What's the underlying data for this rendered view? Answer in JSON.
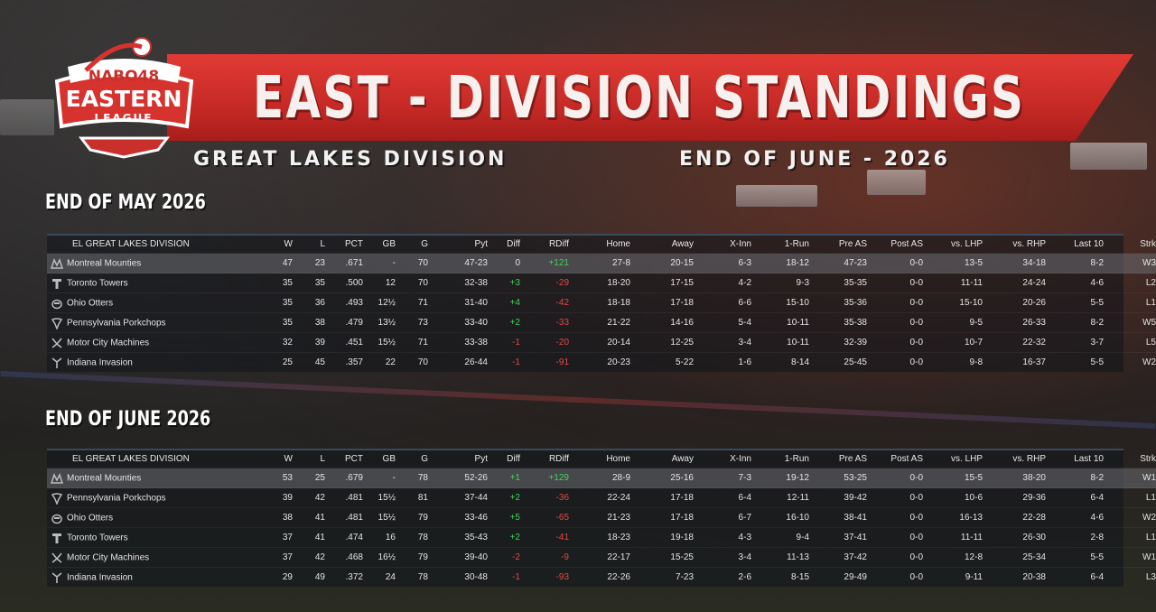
{
  "header": {
    "title": "EAST - DIVISION STANDINGS",
    "subtitle_left": "GREAT LAKES DIVISION",
    "subtitle_right": "END OF JUNE - 2026",
    "logo": {
      "line1": "NABO48",
      "line2": "EASTERN",
      "line3": "LEAGUE"
    }
  },
  "colors": {
    "banner_red": "#d8322e",
    "positive": "#3fd35a",
    "negative": "#e24a46"
  },
  "columns": [
    "EL GREAT LAKES DIVISION",
    "W",
    "L",
    "PCT",
    "GB",
    "G",
    "Pyt",
    "Diff",
    "RDiff",
    "Home",
    "Away",
    "X-Inn",
    "1-Run",
    "Pre AS",
    "Post AS",
    "vs. LHP",
    "vs. RHP",
    "Last 10",
    "Strk"
  ],
  "may": {
    "title": "END OF MAY 2026",
    "rows": [
      {
        "icon": "mounties-logo-icon",
        "team": "Montreal Mounties",
        "w": "47",
        "l": "23",
        "pct": ".671",
        "gb": "-",
        "g": "70",
        "pyt": "47-23",
        "diff": "0",
        "diff_sign": "zero",
        "rdiff": "+121",
        "rdiff_sign": "pos",
        "home": "27-8",
        "away": "20-15",
        "xinn": "6-3",
        "onerun": "18-12",
        "preas": "47-23",
        "postas": "0-0",
        "vlhp": "13-5",
        "vrhp": "34-18",
        "last10": "8-2",
        "strk": "W3"
      },
      {
        "icon": "towers-logo-icon",
        "team": "Toronto Towers",
        "w": "35",
        "l": "35",
        "pct": ".500",
        "gb": "12",
        "g": "70",
        "pyt": "32-38",
        "diff": "+3",
        "diff_sign": "pos",
        "rdiff": "-29",
        "rdiff_sign": "neg",
        "home": "18-20",
        "away": "17-15",
        "xinn": "4-2",
        "onerun": "9-3",
        "preas": "35-35",
        "postas": "0-0",
        "vlhp": "11-11",
        "vrhp": "24-24",
        "last10": "4-6",
        "strk": "L2"
      },
      {
        "icon": "otters-logo-icon",
        "team": "Ohio Otters",
        "w": "35",
        "l": "36",
        "pct": ".493",
        "gb": "12½",
        "g": "71",
        "pyt": "31-40",
        "diff": "+4",
        "diff_sign": "pos",
        "rdiff": "-42",
        "rdiff_sign": "neg",
        "home": "18-18",
        "away": "17-18",
        "xinn": "6-6",
        "onerun": "15-10",
        "preas": "35-36",
        "postas": "0-0",
        "vlhp": "15-10",
        "vrhp": "20-26",
        "last10": "5-5",
        "strk": "L1"
      },
      {
        "icon": "porkchops-logo-icon",
        "team": "Pennsylvania Porkchops",
        "w": "35",
        "l": "38",
        "pct": ".479",
        "gb": "13½",
        "g": "73",
        "pyt": "33-40",
        "diff": "+2",
        "diff_sign": "pos",
        "rdiff": "-33",
        "rdiff_sign": "neg",
        "home": "21-22",
        "away": "14-16",
        "xinn": "5-4",
        "onerun": "10-11",
        "preas": "35-38",
        "postas": "0-0",
        "vlhp": "9-5",
        "vrhp": "26-33",
        "last10": "8-2",
        "strk": "W5"
      },
      {
        "icon": "machines-logo-icon",
        "team": "Motor City Machines",
        "w": "32",
        "l": "39",
        "pct": ".451",
        "gb": "15½",
        "g": "71",
        "pyt": "33-38",
        "diff": "-1",
        "diff_sign": "neg",
        "rdiff": "-20",
        "rdiff_sign": "neg",
        "home": "20-14",
        "away": "12-25",
        "xinn": "3-4",
        "onerun": "10-11",
        "preas": "32-39",
        "postas": "0-0",
        "vlhp": "10-7",
        "vrhp": "22-32",
        "last10": "3-7",
        "strk": "L5"
      },
      {
        "icon": "invasion-logo-icon",
        "team": "Indiana Invasion",
        "w": "25",
        "l": "45",
        "pct": ".357",
        "gb": "22",
        "g": "70",
        "pyt": "26-44",
        "diff": "-1",
        "diff_sign": "neg",
        "rdiff": "-91",
        "rdiff_sign": "neg",
        "home": "20-23",
        "away": "5-22",
        "xinn": "1-6",
        "onerun": "8-14",
        "preas": "25-45",
        "postas": "0-0",
        "vlhp": "9-8",
        "vrhp": "16-37",
        "last10": "5-5",
        "strk": "W2"
      }
    ]
  },
  "june": {
    "title": "END OF JUNE 2026",
    "rows": [
      {
        "icon": "mounties-logo-icon",
        "team": "Montreal Mounties",
        "w": "53",
        "l": "25",
        "pct": ".679",
        "gb": "-",
        "g": "78",
        "pyt": "52-26",
        "diff": "+1",
        "diff_sign": "pos",
        "rdiff": "+129",
        "rdiff_sign": "pos",
        "home": "28-9",
        "away": "25-16",
        "xinn": "7-3",
        "onerun": "19-12",
        "preas": "53-25",
        "postas": "0-0",
        "vlhp": "15-5",
        "vrhp": "38-20",
        "last10": "8-2",
        "strk": "W1"
      },
      {
        "icon": "porkchops-logo-icon",
        "team": "Pennsylvania Porkchops",
        "w": "39",
        "l": "42",
        "pct": ".481",
        "gb": "15½",
        "g": "81",
        "pyt": "37-44",
        "diff": "+2",
        "diff_sign": "pos",
        "rdiff": "-36",
        "rdiff_sign": "neg",
        "home": "22-24",
        "away": "17-18",
        "xinn": "6-4",
        "onerun": "12-11",
        "preas": "39-42",
        "postas": "0-0",
        "vlhp": "10-6",
        "vrhp": "29-36",
        "last10": "6-4",
        "strk": "L1"
      },
      {
        "icon": "otters-logo-icon",
        "team": "Ohio Otters",
        "w": "38",
        "l": "41",
        "pct": ".481",
        "gb": "15½",
        "g": "79",
        "pyt": "33-46",
        "diff": "+5",
        "diff_sign": "pos",
        "rdiff": "-65",
        "rdiff_sign": "neg",
        "home": "21-23",
        "away": "17-18",
        "xinn": "6-7",
        "onerun": "16-10",
        "preas": "38-41",
        "postas": "0-0",
        "vlhp": "16-13",
        "vrhp": "22-28",
        "last10": "4-6",
        "strk": "W2"
      },
      {
        "icon": "towers-logo-icon",
        "team": "Toronto Towers",
        "w": "37",
        "l": "41",
        "pct": ".474",
        "gb": "16",
        "g": "78",
        "pyt": "35-43",
        "diff": "+2",
        "diff_sign": "pos",
        "rdiff": "-41",
        "rdiff_sign": "neg",
        "home": "18-23",
        "away": "19-18",
        "xinn": "4-3",
        "onerun": "9-4",
        "preas": "37-41",
        "postas": "0-0",
        "vlhp": "11-11",
        "vrhp": "26-30",
        "last10": "2-8",
        "strk": "L1"
      },
      {
        "icon": "machines-logo-icon",
        "team": "Motor City Machines",
        "w": "37",
        "l": "42",
        "pct": ".468",
        "gb": "16½",
        "g": "79",
        "pyt": "39-40",
        "diff": "-2",
        "diff_sign": "neg",
        "rdiff": "-9",
        "rdiff_sign": "neg",
        "home": "22-17",
        "away": "15-25",
        "xinn": "3-4",
        "onerun": "11-13",
        "preas": "37-42",
        "postas": "0-0",
        "vlhp": "12-8",
        "vrhp": "25-34",
        "last10": "5-5",
        "strk": "W1"
      },
      {
        "icon": "invasion-logo-icon",
        "team": "Indiana Invasion",
        "w": "29",
        "l": "49",
        "pct": ".372",
        "gb": "24",
        "g": "78",
        "pyt": "30-48",
        "diff": "-1",
        "diff_sign": "neg",
        "rdiff": "-93",
        "rdiff_sign": "neg",
        "home": "22-26",
        "away": "7-23",
        "xinn": "2-6",
        "onerun": "8-15",
        "preas": "29-49",
        "postas": "0-0",
        "vlhp": "9-11",
        "vrhp": "20-38",
        "last10": "6-4",
        "strk": "L3"
      }
    ]
  }
}
